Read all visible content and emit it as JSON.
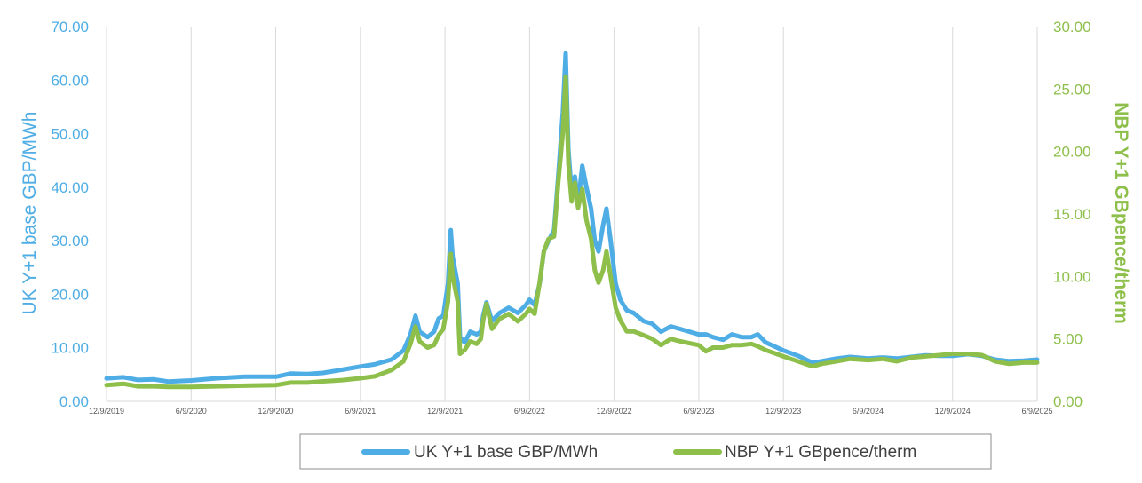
{
  "colors": {
    "uk": "#4EADE5",
    "nbp": "#8DBF4A",
    "grid": "#D9D9D9",
    "legend_border": "#8C8C8C"
  },
  "chart_data": {
    "type": "line",
    "x_tick_labels": [
      "12/9/2019",
      "6/9/2020",
      "12/9/2020",
      "6/9/2021",
      "12/9/2021",
      "6/9/2022",
      "12/9/2022",
      "6/9/2023",
      "12/9/2023",
      "6/9/2024",
      "12/9/2024",
      "6/9/2025"
    ],
    "xlim": [
      "2019-12-09",
      "2025-06-09"
    ],
    "y_left": {
      "label": "UK Y+1 base GBP/MWh",
      "ylim": [
        0,
        70
      ],
      "ticks": [
        "0.00",
        "10.00",
        "20.00",
        "30.00",
        "40.00",
        "50.00",
        "60.00",
        "70.00"
      ]
    },
    "y_right": {
      "label": "NBP Y+1 GBpence/therm",
      "ylim": [
        0,
        30
      ],
      "ticks": [
        "0.00",
        "5.00",
        "10.00",
        "15.00",
        "20.00",
        "25.00",
        "30.00"
      ]
    },
    "grid": "vertical",
    "legend_position": "bottom",
    "series": [
      {
        "name": "UK Y+1 base GBP/MWh",
        "axis": "left",
        "points": [
          [
            "2019-12-09",
            4.3
          ],
          [
            "2020-01-15",
            4.5
          ],
          [
            "2020-02-15",
            4.0
          ],
          [
            "2020-03-20",
            4.1
          ],
          [
            "2020-04-20",
            3.7
          ],
          [
            "2020-06-09",
            3.9
          ],
          [
            "2020-08-01",
            4.3
          ],
          [
            "2020-10-01",
            4.6
          ],
          [
            "2020-12-09",
            4.6
          ],
          [
            "2021-01-10",
            5.2
          ],
          [
            "2021-02-15",
            5.1
          ],
          [
            "2021-03-20",
            5.3
          ],
          [
            "2021-05-01",
            5.9
          ],
          [
            "2021-06-09",
            6.5
          ],
          [
            "2021-07-10",
            6.9
          ],
          [
            "2021-08-15",
            7.8
          ],
          [
            "2021-09-10",
            9.5
          ],
          [
            "2021-09-25",
            12.5
          ],
          [
            "2021-10-06",
            16.0
          ],
          [
            "2021-10-15",
            13.0
          ],
          [
            "2021-11-01",
            12.0
          ],
          [
            "2021-11-15",
            13.0
          ],
          [
            "2021-11-25",
            15.5
          ],
          [
            "2021-12-05",
            16.0
          ],
          [
            "2021-12-15",
            22.0
          ],
          [
            "2021-12-21",
            32.0
          ],
          [
            "2021-12-25",
            27.0
          ],
          [
            "2022-01-05",
            22.0
          ],
          [
            "2022-01-10",
            12.0
          ],
          [
            "2022-01-20",
            11.0
          ],
          [
            "2022-02-01",
            13.0
          ],
          [
            "2022-02-15",
            12.5
          ],
          [
            "2022-02-24",
            13.0
          ],
          [
            "2022-03-01",
            16.0
          ],
          [
            "2022-03-08",
            18.5
          ],
          [
            "2022-03-20",
            15.0
          ],
          [
            "2022-04-05",
            16.5
          ],
          [
            "2022-04-25",
            17.5
          ],
          [
            "2022-05-15",
            16.5
          ],
          [
            "2022-06-01",
            18.0
          ],
          [
            "2022-06-09",
            19.0
          ],
          [
            "2022-06-20",
            18.0
          ],
          [
            "2022-07-01",
            22.0
          ],
          [
            "2022-07-10",
            28.0
          ],
          [
            "2022-07-20",
            30.0
          ],
          [
            "2022-08-01",
            32.0
          ],
          [
            "2022-08-10",
            42.0
          ],
          [
            "2022-08-20",
            54.0
          ],
          [
            "2022-08-26",
            65.0
          ],
          [
            "2022-09-01",
            47.0
          ],
          [
            "2022-09-08",
            39.0
          ],
          [
            "2022-09-15",
            42.0
          ],
          [
            "2022-09-22",
            37.0
          ],
          [
            "2022-10-01",
            44.0
          ],
          [
            "2022-10-10",
            40.0
          ],
          [
            "2022-10-20",
            36.0
          ],
          [
            "2022-10-28",
            30.0
          ],
          [
            "2022-11-05",
            28.0
          ],
          [
            "2022-11-15",
            33.0
          ],
          [
            "2022-11-22",
            36.0
          ],
          [
            "2022-12-01",
            30.0
          ],
          [
            "2022-12-12",
            22.0
          ],
          [
            "2022-12-22",
            19.0
          ],
          [
            "2023-01-05",
            17.0
          ],
          [
            "2023-01-20",
            16.5
          ],
          [
            "2023-02-10",
            15.0
          ],
          [
            "2023-03-01",
            14.5
          ],
          [
            "2023-03-20",
            13.0
          ],
          [
            "2023-04-10",
            14.0
          ],
          [
            "2023-05-01",
            13.5
          ],
          [
            "2023-06-09",
            12.5
          ],
          [
            "2023-06-25",
            12.5
          ],
          [
            "2023-07-10",
            12.0
          ],
          [
            "2023-08-01",
            11.5
          ],
          [
            "2023-08-20",
            12.5
          ],
          [
            "2023-09-10",
            12.0
          ],
          [
            "2023-10-01",
            12.0
          ],
          [
            "2023-10-15",
            12.5
          ],
          [
            "2023-11-01",
            11.0
          ],
          [
            "2023-12-09",
            9.5
          ],
          [
            "2024-01-10",
            8.5
          ],
          [
            "2024-02-10",
            7.2
          ],
          [
            "2024-03-01",
            7.5
          ],
          [
            "2024-04-01",
            8.0
          ],
          [
            "2024-05-01",
            8.3
          ],
          [
            "2024-06-09",
            8.0
          ],
          [
            "2024-07-10",
            8.2
          ],
          [
            "2024-08-10",
            8.0
          ],
          [
            "2024-09-10",
            8.3
          ],
          [
            "2024-10-10",
            8.6
          ],
          [
            "2024-11-10",
            8.5
          ],
          [
            "2024-12-09",
            8.5
          ],
          [
            "2025-01-10",
            8.8
          ],
          [
            "2025-02-10",
            8.5
          ],
          [
            "2025-03-10",
            7.8
          ],
          [
            "2025-04-10",
            7.5
          ],
          [
            "2025-05-10",
            7.6
          ],
          [
            "2025-06-09",
            7.8
          ]
        ]
      },
      {
        "name": "NBP Y+1 GBpence/therm",
        "axis": "right",
        "points": [
          [
            "2019-12-09",
            1.3
          ],
          [
            "2020-01-15",
            1.4
          ],
          [
            "2020-02-15",
            1.2
          ],
          [
            "2020-03-20",
            1.2
          ],
          [
            "2020-04-20",
            1.15
          ],
          [
            "2020-06-09",
            1.15
          ],
          [
            "2020-08-01",
            1.2
          ],
          [
            "2020-10-01",
            1.25
          ],
          [
            "2020-12-09",
            1.3
          ],
          [
            "2021-01-10",
            1.5
          ],
          [
            "2021-02-15",
            1.5
          ],
          [
            "2021-03-20",
            1.6
          ],
          [
            "2021-05-01",
            1.7
          ],
          [
            "2021-06-09",
            1.85
          ],
          [
            "2021-07-10",
            2.0
          ],
          [
            "2021-08-15",
            2.5
          ],
          [
            "2021-09-10",
            3.2
          ],
          [
            "2021-09-25",
            4.6
          ],
          [
            "2021-10-06",
            6.0
          ],
          [
            "2021-10-15",
            4.8
          ],
          [
            "2021-11-01",
            4.3
          ],
          [
            "2021-11-15",
            4.5
          ],
          [
            "2021-11-25",
            5.3
          ],
          [
            "2021-12-05",
            5.8
          ],
          [
            "2021-12-15",
            8.0
          ],
          [
            "2021-12-21",
            11.8
          ],
          [
            "2021-12-25",
            10.0
          ],
          [
            "2022-01-05",
            8.0
          ],
          [
            "2022-01-10",
            3.8
          ],
          [
            "2022-01-20",
            4.1
          ],
          [
            "2022-02-01",
            4.8
          ],
          [
            "2022-02-15",
            4.6
          ],
          [
            "2022-02-24",
            5.0
          ],
          [
            "2022-03-01",
            6.5
          ],
          [
            "2022-03-08",
            7.8
          ],
          [
            "2022-03-20",
            5.8
          ],
          [
            "2022-04-05",
            6.6
          ],
          [
            "2022-04-25",
            7.0
          ],
          [
            "2022-05-15",
            6.4
          ],
          [
            "2022-06-01",
            7.0
          ],
          [
            "2022-06-09",
            7.4
          ],
          [
            "2022-06-20",
            7.0
          ],
          [
            "2022-07-01",
            9.5
          ],
          [
            "2022-07-10",
            12.0
          ],
          [
            "2022-07-20",
            13.0
          ],
          [
            "2022-08-01",
            13.2
          ],
          [
            "2022-08-10",
            17.5
          ],
          [
            "2022-08-20",
            21.5
          ],
          [
            "2022-08-26",
            26.0
          ],
          [
            "2022-09-01",
            19.0
          ],
          [
            "2022-09-08",
            16.0
          ],
          [
            "2022-09-15",
            17.5
          ],
          [
            "2022-09-22",
            15.5
          ],
          [
            "2022-10-01",
            17.0
          ],
          [
            "2022-10-10",
            14.5
          ],
          [
            "2022-10-20",
            13.0
          ],
          [
            "2022-10-28",
            10.5
          ],
          [
            "2022-11-05",
            9.5
          ],
          [
            "2022-11-15",
            10.5
          ],
          [
            "2022-11-22",
            12.0
          ],
          [
            "2022-12-01",
            10.0
          ],
          [
            "2022-12-12",
            7.5
          ],
          [
            "2022-12-22",
            6.5
          ],
          [
            "2023-01-05",
            5.6
          ],
          [
            "2023-01-20",
            5.6
          ],
          [
            "2023-02-10",
            5.3
          ],
          [
            "2023-03-01",
            5.0
          ],
          [
            "2023-03-20",
            4.5
          ],
          [
            "2023-04-10",
            5.0
          ],
          [
            "2023-05-01",
            4.8
          ],
          [
            "2023-06-09",
            4.5
          ],
          [
            "2023-06-25",
            4.0
          ],
          [
            "2023-07-10",
            4.3
          ],
          [
            "2023-08-01",
            4.3
          ],
          [
            "2023-08-20",
            4.5
          ],
          [
            "2023-09-10",
            4.5
          ],
          [
            "2023-10-01",
            4.6
          ],
          [
            "2023-10-15",
            4.4
          ],
          [
            "2023-11-01",
            4.1
          ],
          [
            "2023-12-09",
            3.6
          ],
          [
            "2024-01-10",
            3.2
          ],
          [
            "2024-02-10",
            2.8
          ],
          [
            "2024-03-01",
            3.0
          ],
          [
            "2024-04-01",
            3.2
          ],
          [
            "2024-05-01",
            3.4
          ],
          [
            "2024-06-09",
            3.3
          ],
          [
            "2024-07-10",
            3.4
          ],
          [
            "2024-08-10",
            3.2
          ],
          [
            "2024-09-10",
            3.5
          ],
          [
            "2024-10-10",
            3.6
          ],
          [
            "2024-11-10",
            3.7
          ],
          [
            "2024-12-09",
            3.8
          ],
          [
            "2025-01-10",
            3.8
          ],
          [
            "2025-02-10",
            3.7
          ],
          [
            "2025-03-10",
            3.2
          ],
          [
            "2025-04-10",
            3.0
          ],
          [
            "2025-05-10",
            3.1
          ],
          [
            "2025-06-09",
            3.1
          ]
        ]
      }
    ]
  }
}
